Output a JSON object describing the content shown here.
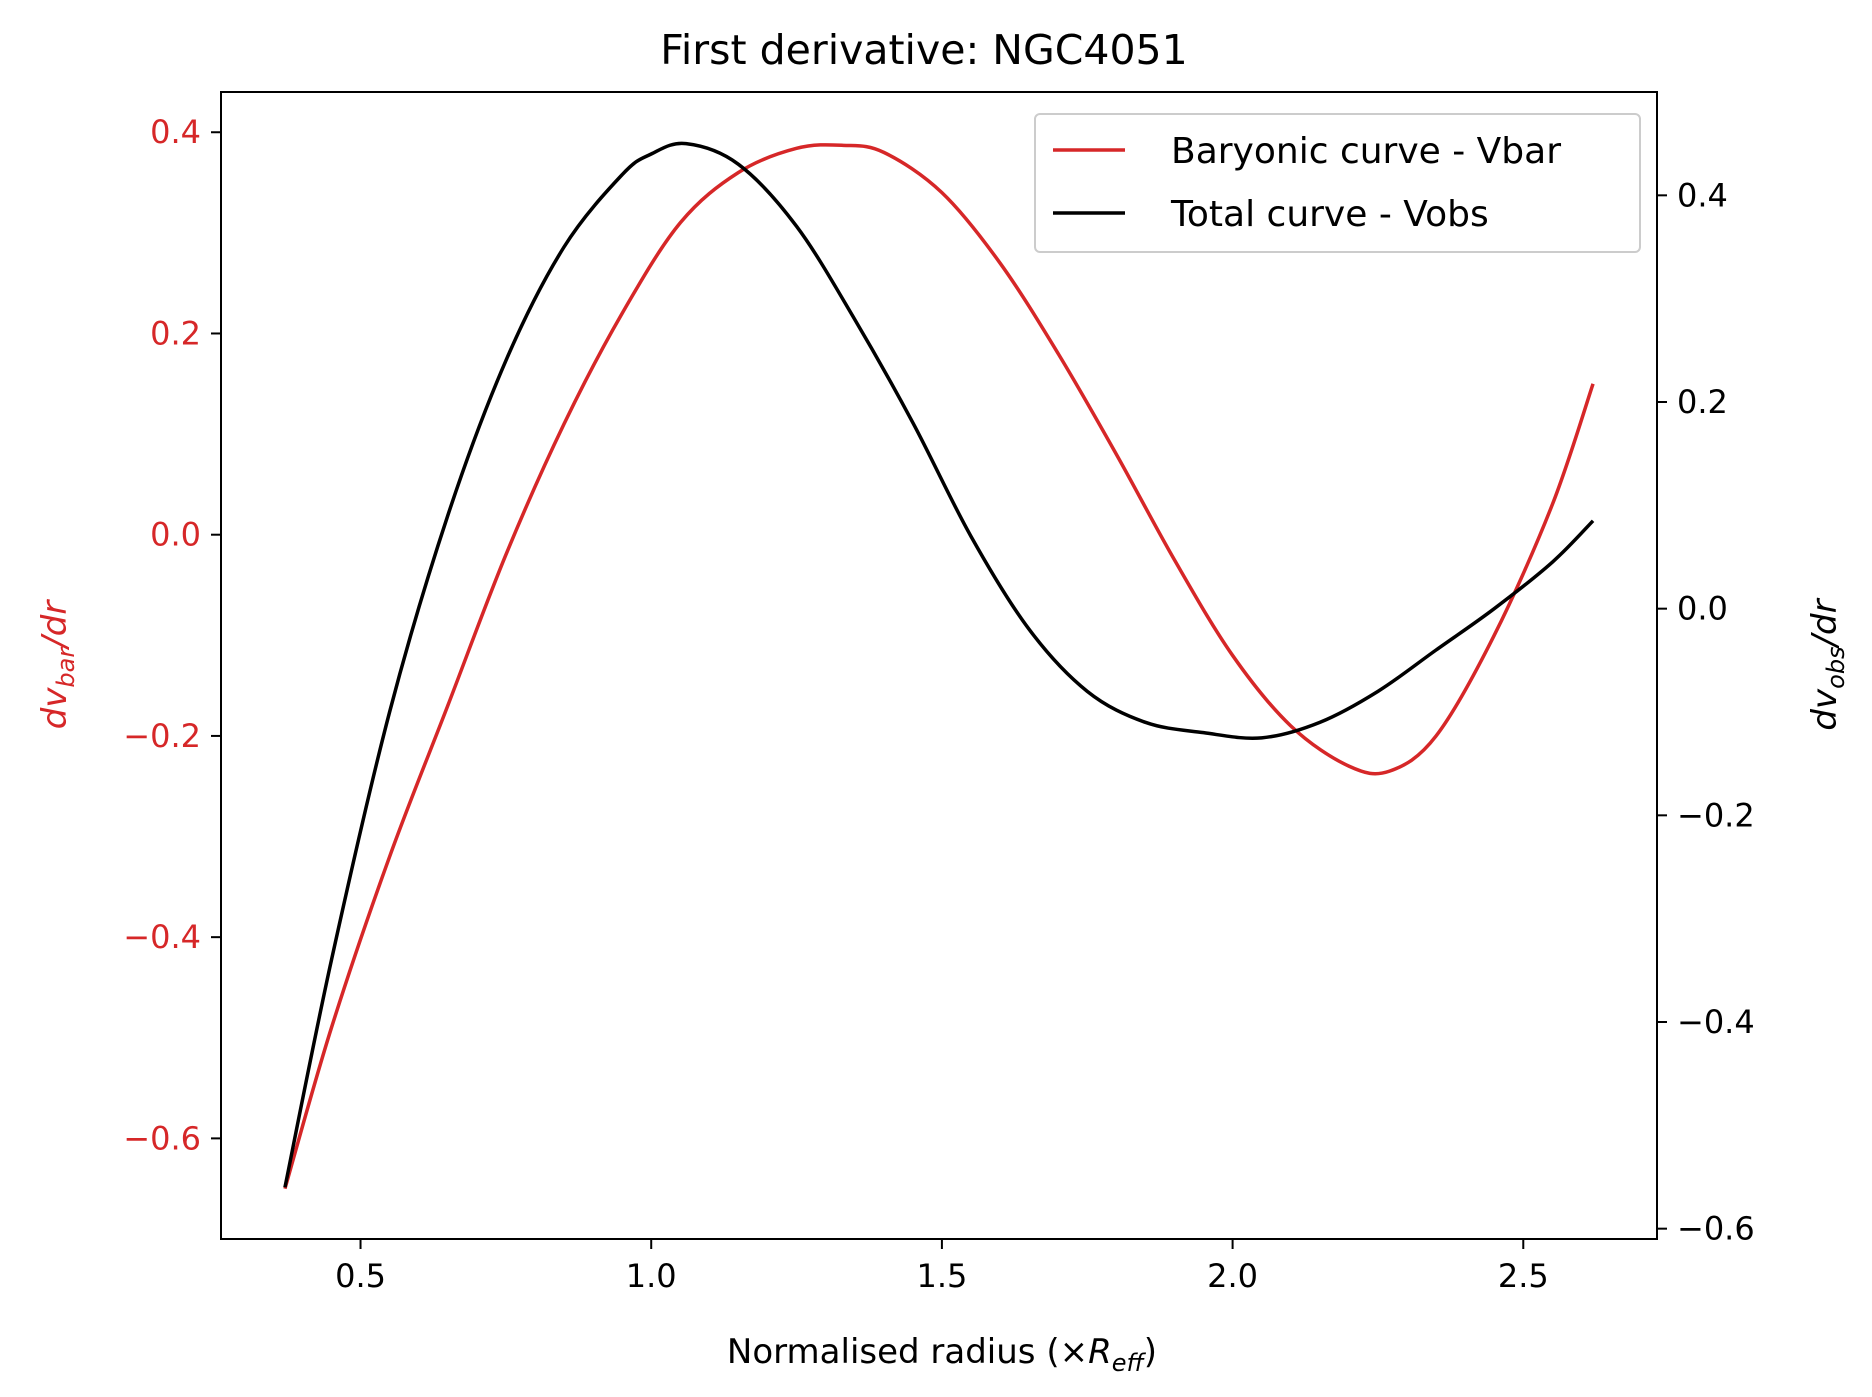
{
  "chart_data": {
    "type": "line",
    "title": "First derivative: NGC4051",
    "xlabel": {
      "pre": "Normalised radius (×",
      "var": "R",
      "sub": "eff",
      "post": ")"
    },
    "ylabel_left": {
      "pre": "dv",
      "sub": "bar",
      "post": "/dr"
    },
    "ylabel_right": {
      "pre": "dv",
      "sub": "obs",
      "post": "/dr"
    },
    "xlim": [
      0.26,
      2.73
    ],
    "ylim_left": [
      -0.7,
      0.44
    ],
    "ylim_right": [
      -0.61,
      0.5
    ],
    "x_ticks": [
      "0.5",
      "1.0",
      "1.5",
      "2.0",
      "2.5"
    ],
    "x_tick_values": [
      0.5,
      1.0,
      1.5,
      2.0,
      2.5
    ],
    "y_left_ticks": [
      "−0.6",
      "−0.4",
      "−0.2",
      "0.0",
      "0.2",
      "0.4"
    ],
    "y_left_tick_values": [
      -0.6,
      -0.4,
      -0.2,
      0.0,
      0.2,
      0.4
    ],
    "y_right_ticks": [
      "−0.6",
      "−0.4",
      "−0.2",
      "0.0",
      "0.2",
      "0.4"
    ],
    "y_right_tick_values": [
      -0.6,
      -0.4,
      -0.2,
      0.0,
      0.2,
      0.4
    ],
    "legend_position": "top-right",
    "grid": false,
    "series": [
      {
        "name": "Baryonic curve - Vbar",
        "axis": "left",
        "color": "#d62728",
        "x": [
          0.37,
          0.45,
          0.55,
          0.65,
          0.75,
          0.85,
          0.95,
          1.05,
          1.15,
          1.25,
          1.33,
          1.4,
          1.5,
          1.6,
          1.7,
          1.8,
          1.9,
          2.0,
          2.1,
          2.2,
          2.27,
          2.35,
          2.45,
          2.55,
          2.62
        ],
        "y": [
          -0.65,
          -0.49,
          -0.32,
          -0.17,
          -0.02,
          0.11,
          0.22,
          0.31,
          0.36,
          0.384,
          0.387,
          0.38,
          0.34,
          0.27,
          0.18,
          0.08,
          -0.025,
          -0.12,
          -0.19,
          -0.23,
          -0.235,
          -0.2,
          -0.1,
          0.03,
          0.15
        ]
      },
      {
        "name": "Total curve - Vobs",
        "axis": "right",
        "color": "#000000",
        "x": [
          0.37,
          0.45,
          0.55,
          0.65,
          0.75,
          0.85,
          0.95,
          1.0,
          1.06,
          1.15,
          1.25,
          1.35,
          1.45,
          1.55,
          1.65,
          1.75,
          1.85,
          1.95,
          2.05,
          2.15,
          2.25,
          2.35,
          2.45,
          2.55,
          2.62
        ],
        "y": [
          -0.56,
          -0.34,
          -0.1,
          0.09,
          0.24,
          0.35,
          0.42,
          0.44,
          0.45,
          0.43,
          0.37,
          0.28,
          0.18,
          0.07,
          -0.02,
          -0.08,
          -0.11,
          -0.12,
          -0.125,
          -0.11,
          -0.08,
          -0.04,
          0.0,
          0.045,
          0.085
        ]
      }
    ]
  }
}
